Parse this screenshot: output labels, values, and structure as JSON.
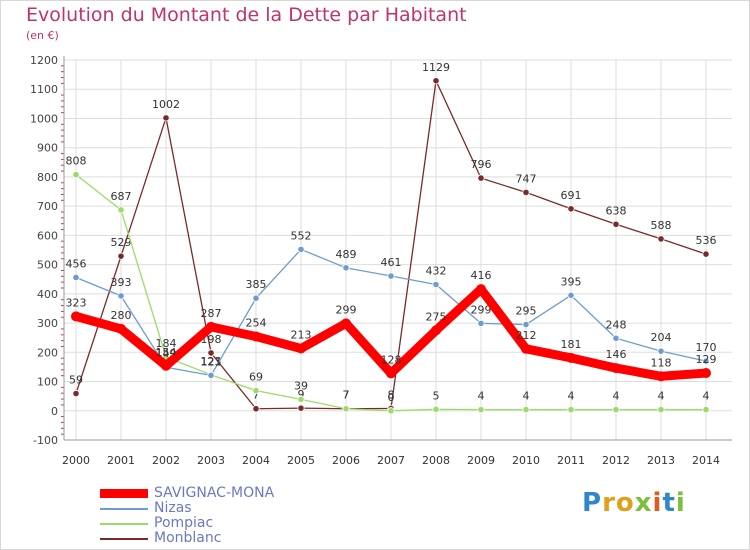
{
  "chart_data": {
    "type": "line",
    "title": "Evolution du Montant de la Dette par Habitant",
    "subtitle": "(en €)",
    "categories": [
      "2000",
      "2001",
      "2002",
      "2003",
      "2004",
      "2005",
      "2006",
      "2007",
      "2008",
      "2009",
      "2010",
      "2011",
      "2012",
      "2013",
      "2014"
    ],
    "ylim": [
      -100,
      1200
    ],
    "yticks": [
      -100,
      0,
      100,
      200,
      300,
      400,
      500,
      600,
      700,
      800,
      900,
      1000,
      1100,
      1200
    ],
    "grid": true,
    "legend_position": "bottom-left",
    "series": [
      {
        "name": "SAVIGNAC-MONA",
        "color": "#ff0000",
        "values": [
          323,
          280,
          154,
          287,
          254,
          213,
          299,
          128,
          275,
          416,
          212,
          181,
          146,
          118,
          129
        ]
      },
      {
        "name": "Nizas",
        "color": "#6c9dd0",
        "values": [
          456,
          393,
          149,
          121,
          385,
          552,
          489,
          461,
          432,
          299,
          295,
          395,
          248,
          204,
          170
        ]
      },
      {
        "name": "Pompiac",
        "color": "#99dd66",
        "values": [
          808,
          687,
          184,
          123,
          69,
          39,
          7,
          0,
          5,
          4,
          4,
          4,
          4,
          4,
          4
        ]
      },
      {
        "name": "Monblanc",
        "color": "#7a2a2a",
        "values": [
          59,
          529,
          1002,
          198,
          7,
          9,
          7,
          8,
          1129,
          796,
          747,
          691,
          638,
          588,
          536
        ]
      }
    ]
  },
  "logo": {
    "text": "Proxiti",
    "letters": [
      "P",
      "r",
      "o",
      "x",
      "i",
      "t",
      "i"
    ],
    "colors": [
      "#2f86c8",
      "#e0a01c",
      "#e0a01c",
      "#7cbf3a",
      "#e05a1c",
      "#2f86c8",
      "#7cbf3a"
    ]
  }
}
